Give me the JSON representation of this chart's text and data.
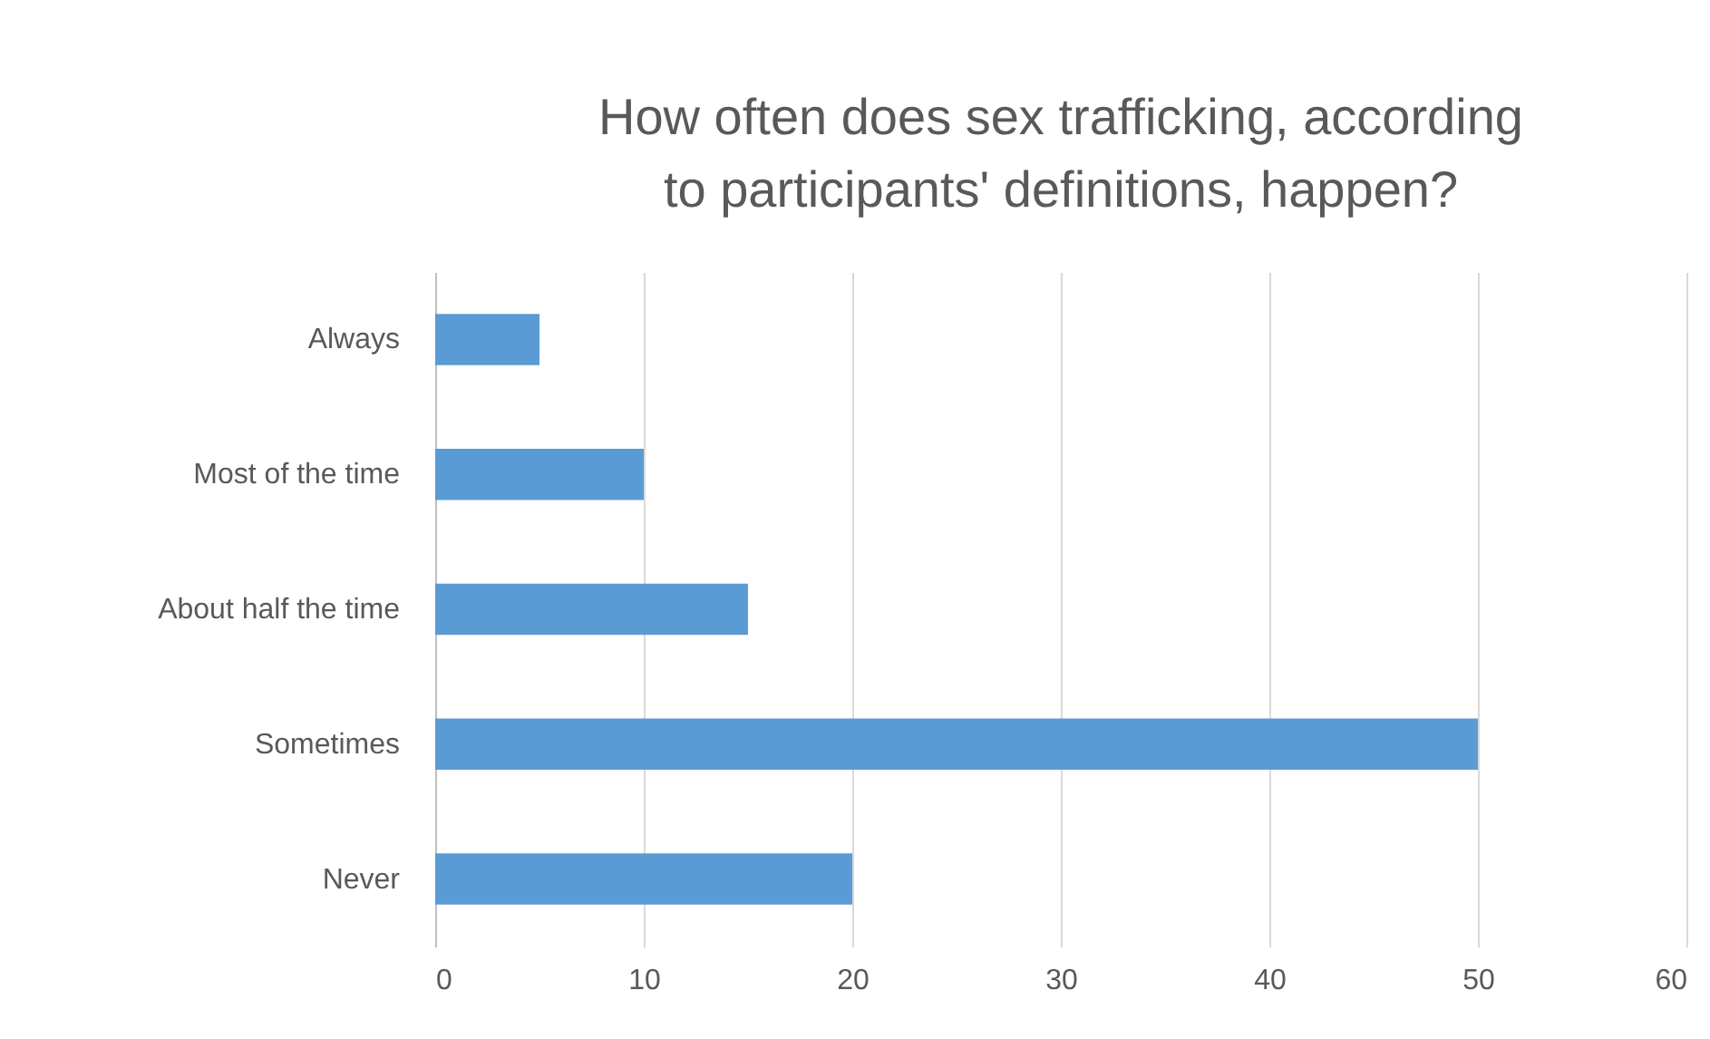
{
  "chart_data": {
    "type": "bar",
    "orientation": "horizontal",
    "title": "How often does sex trafficking, according to participants' definitions, happen?",
    "categories": [
      "Always",
      "Most of the time",
      "About half the time",
      "Sometimes",
      "Never"
    ],
    "values": [
      5,
      10,
      15,
      50,
      20
    ],
    "color": "#5b9bd5",
    "xlim": [
      0,
      60
    ],
    "xticks": [
      0,
      10,
      20,
      30,
      40,
      50,
      60
    ],
    "grid": "x"
  }
}
